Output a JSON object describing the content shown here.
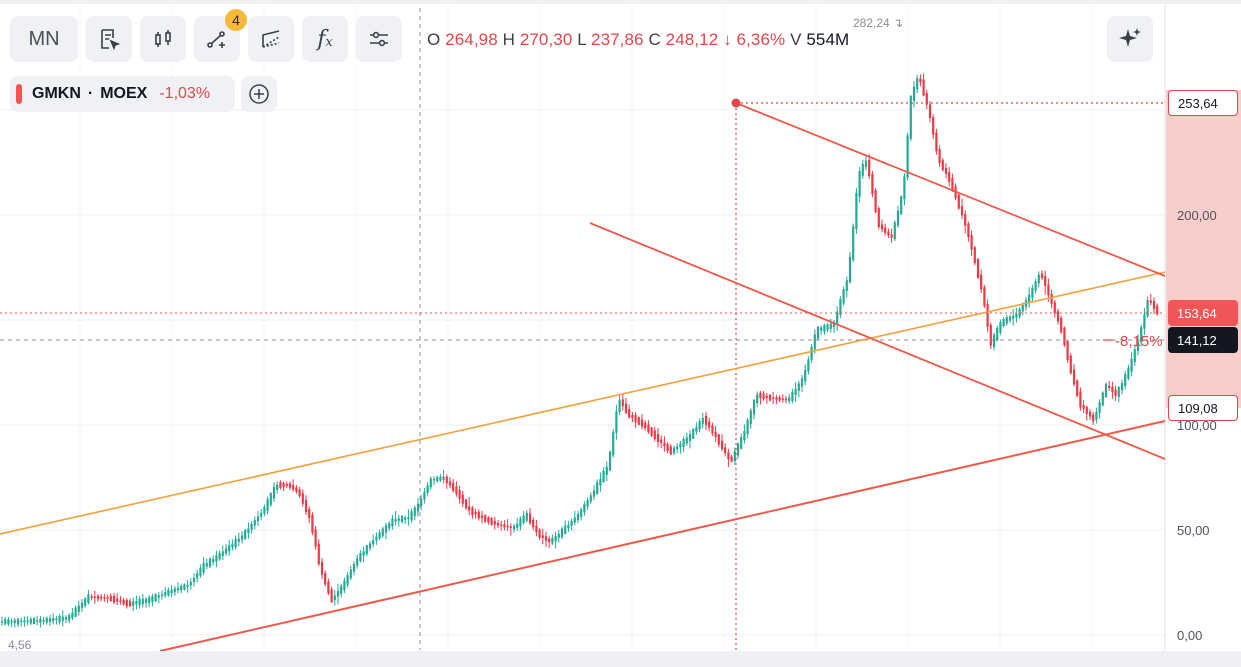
{
  "toolbar": {
    "interval_label": "MN",
    "indicator_badge": "4"
  },
  "ohlc": {
    "o_label": "O",
    "o_value": "264,98",
    "h_label": "H",
    "h_value": "270,30",
    "l_label": "L",
    "l_value": "237,86",
    "c_label": "C",
    "c_value": "248,12",
    "change_arrow": "↓",
    "change_value": "6,36%",
    "v_label": "V",
    "v_value": "554M"
  },
  "symbol": {
    "ticker": "GMKN",
    "separator": "·",
    "exchange": "MOEX",
    "change": "-1,03%"
  },
  "axis": {
    "labels": [
      "200,00",
      "100,00",
      "50,00",
      "0,00"
    ]
  },
  "price_tags": {
    "upper": "253,64",
    "current": "153,64",
    "crosshair": "141,12",
    "lower": "109,08"
  },
  "annotations": {
    "range_pct": "-8,15%",
    "peak": "282,24",
    "low": "4,56"
  },
  "colors": {
    "up": "#22ab94",
    "down": "#f23645",
    "trendline": "#ef5a4a",
    "channel": "#f5a03a",
    "range_fill": "#f8c4c0"
  },
  "chart_data": {
    "type": "candlestick",
    "symbol": "GMKN",
    "exchange": "MOEX",
    "interval": "MN",
    "last_bar": {
      "open": 264.98,
      "high": 270.3,
      "low": 237.86,
      "close": 248.12,
      "change_pct": -6.36,
      "volume": "554M"
    },
    "y_tick_labels": [
      "0,00",
      "50,00",
      "100,00",
      "200,00"
    ],
    "price_range_tool": {
      "top": 253.64,
      "bottom": 109.08,
      "change_pct": -8.15
    },
    "current_price": 153.64,
    "crosshair_price": 141.12,
    "all_time_high": 282.24,
    "series_low": 4.56
  }
}
